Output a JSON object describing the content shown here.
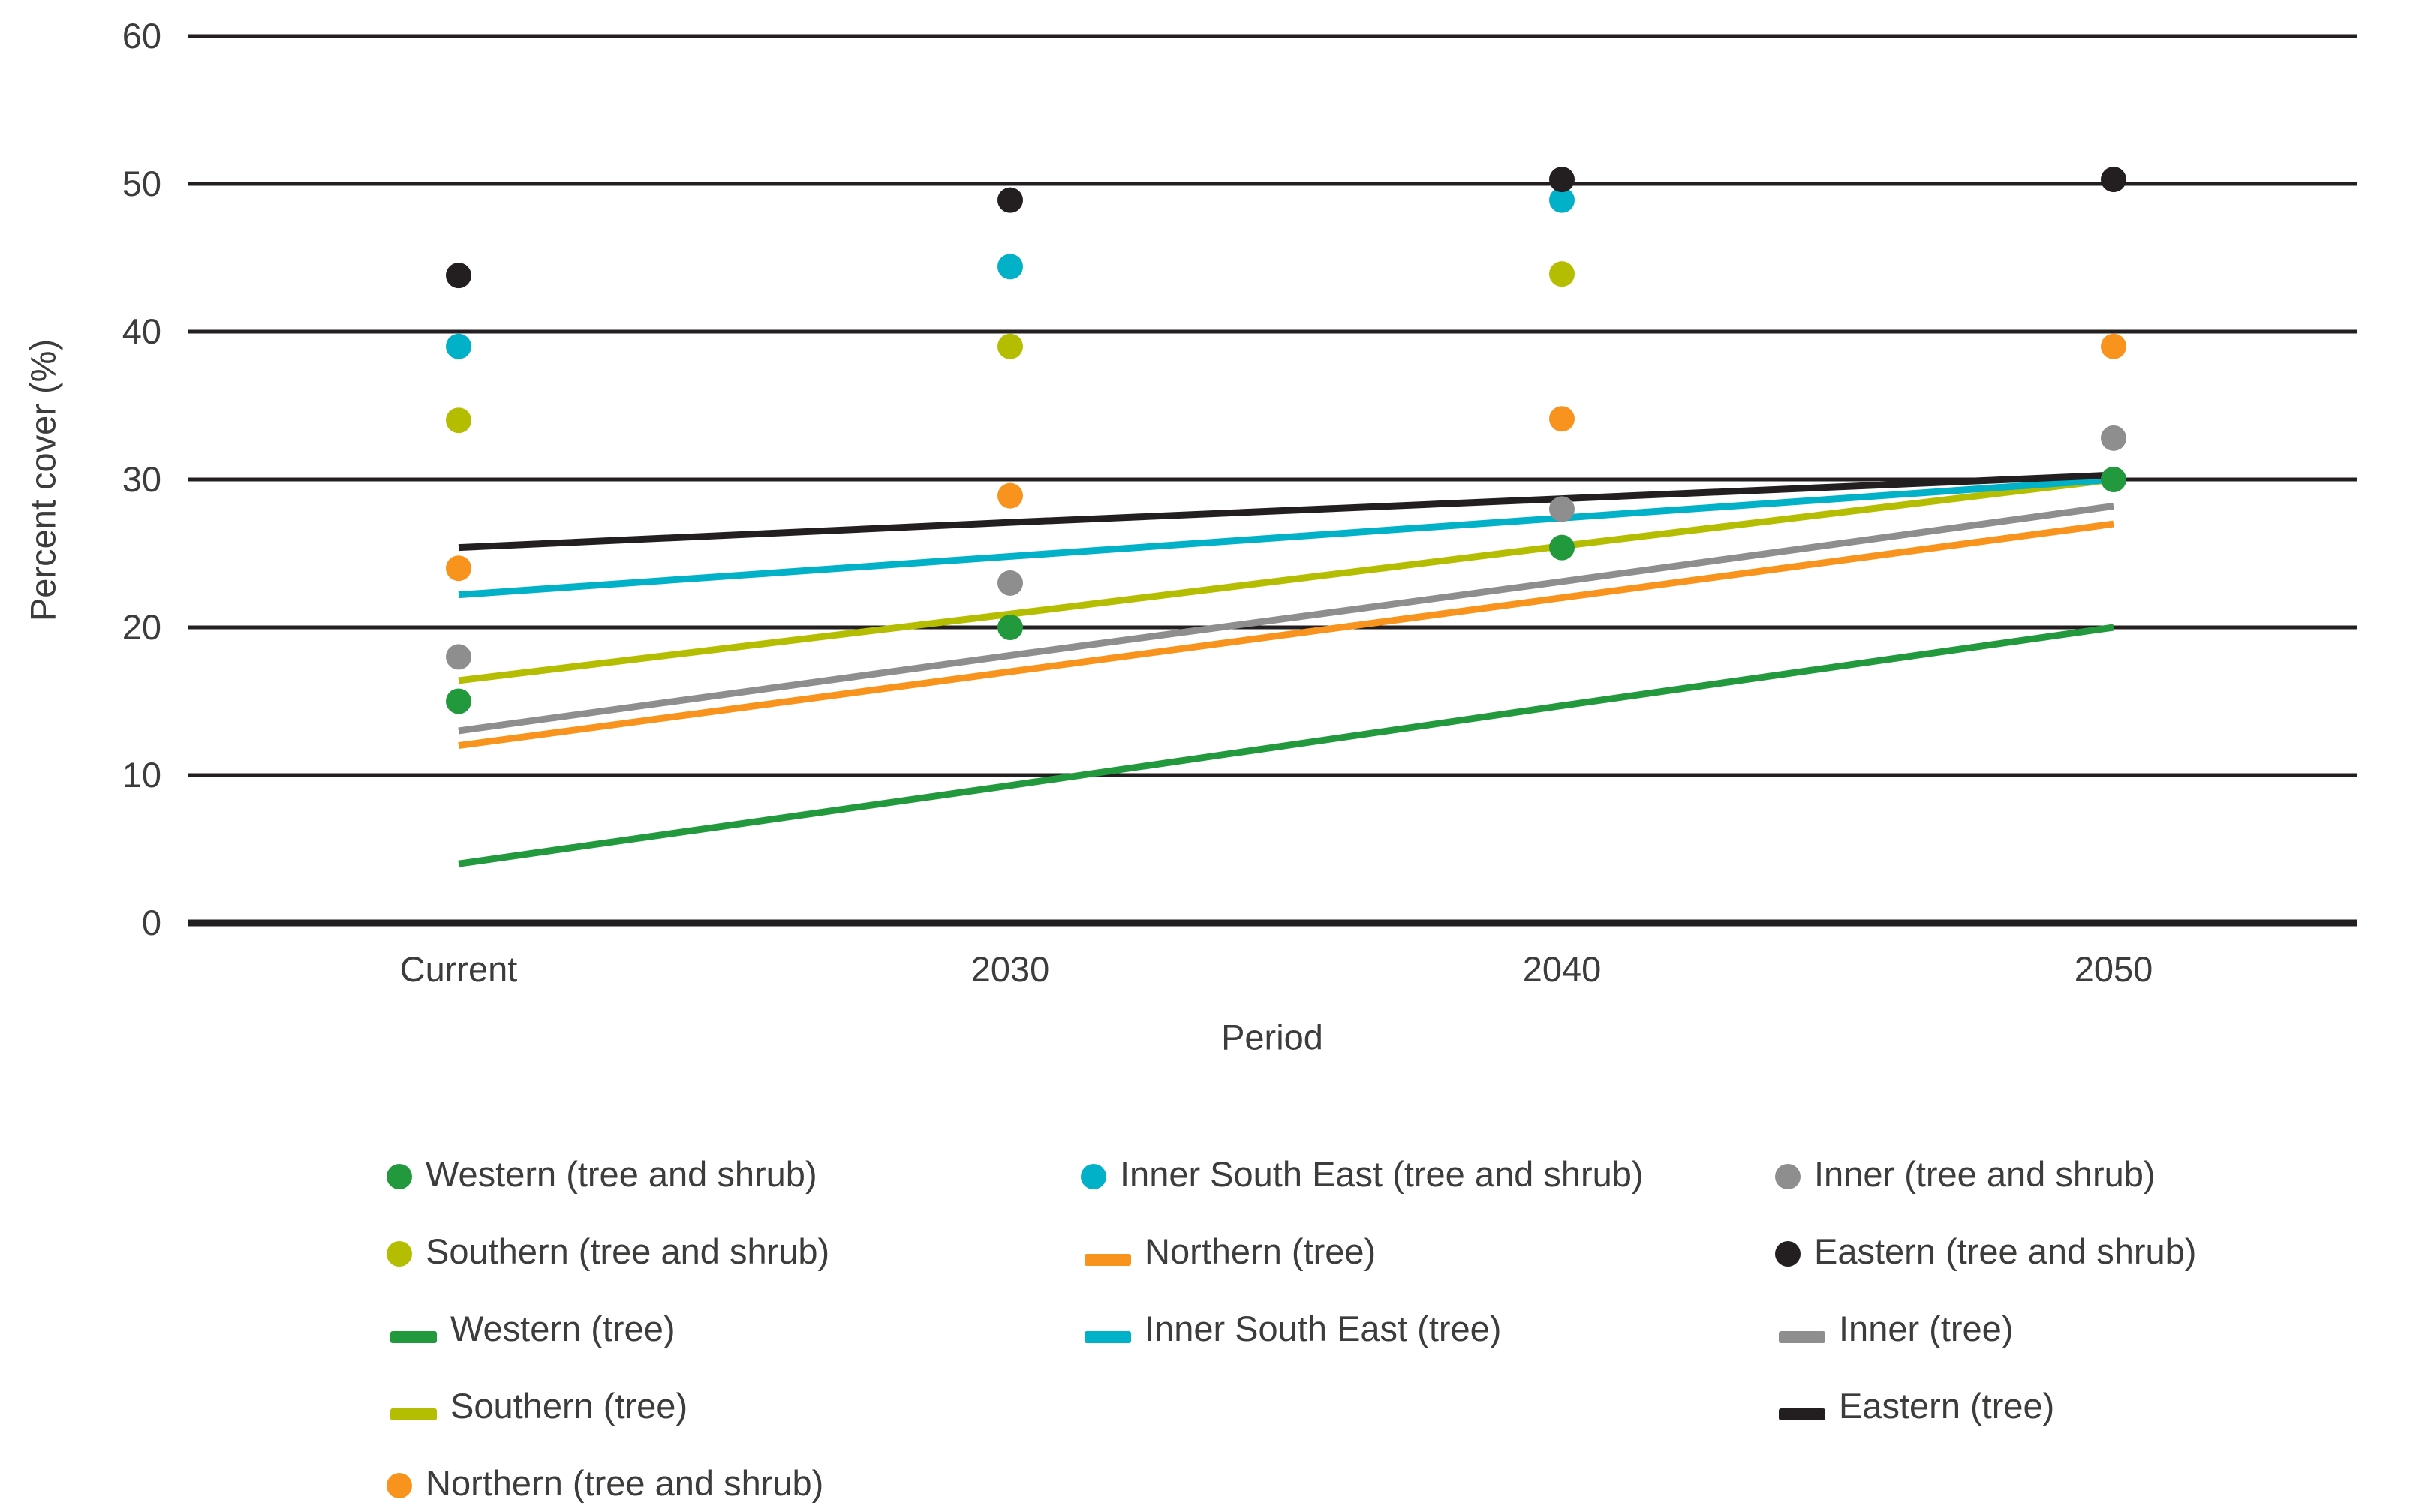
{
  "chart_data": {
    "type": "line",
    "subtype": "scatter targets with straight trend lines",
    "title": "",
    "categories": [
      "Current",
      "2030",
      "2040",
      "2050"
    ],
    "xlabel": "Period",
    "ylabel": "Percent cover (%)",
    "ylim": [
      0,
      60
    ],
    "yticks": [
      0,
      10,
      20,
      30,
      40,
      50,
      60
    ],
    "grid": "horizontal black gridlines at every 10, heavier baseline at 0",
    "legend_position": "below plot, three columns",
    "series": [
      {
        "name": "Western (tree and shrub)",
        "style": "dots",
        "color": "#22993d",
        "values": [
          15,
          20,
          25.4,
          30
        ]
      },
      {
        "name": "Inner South East (tree and shrub)",
        "style": "dots",
        "color": "#00b1c7",
        "values": [
          39,
          44.4,
          48.9,
          null
        ]
      },
      {
        "name": "Inner (tree and shrub)",
        "style": "dots",
        "color": "#8e8e8e",
        "values": [
          18,
          23,
          28,
          32.8
        ]
      },
      {
        "name": "Southern (tree and shrub)",
        "style": "dots",
        "color": "#b5bd00",
        "values": [
          34,
          39,
          43.9,
          null
        ]
      },
      {
        "name": "Northern (tree and shrub)",
        "style": "dots",
        "color": "#f8941d",
        "values": [
          24,
          28.9,
          34.1,
          39
        ]
      },
      {
        "name": "Eastern (tree and shrub)",
        "style": "dots",
        "color": "#231f20",
        "values": [
          43.8,
          48.9,
          50.3,
          50.3
        ]
      },
      {
        "name": "Western (tree)",
        "style": "line",
        "color": "#22993d",
        "values": [
          4,
          9.3,
          14.7,
          20
        ]
      },
      {
        "name": "Northern (tree)",
        "style": "line",
        "color": "#f8941d",
        "values": [
          12,
          17,
          22,
          27
        ]
      },
      {
        "name": "Inner (tree)",
        "style": "line",
        "color": "#8e8e8e",
        "values": [
          13,
          18.1,
          23.1,
          28.2
        ]
      },
      {
        "name": "Southern (tree)",
        "style": "line",
        "color": "#b5bd00",
        "values": [
          16.4,
          20.9,
          25.5,
          30
        ]
      },
      {
        "name": "Inner South East (tree)",
        "style": "line",
        "color": "#00b1c7",
        "values": [
          22.2,
          24.8,
          27.4,
          30
        ]
      },
      {
        "name": "Eastern (tree)",
        "style": "line",
        "color": "#231f20",
        "values": [
          25.4,
          27.1,
          28.7,
          30.3
        ]
      }
    ]
  },
  "legend": {
    "columns": [
      [
        {
          "label": "Western (tree and shrub)",
          "marker": "dot",
          "color": "#22993d"
        },
        {
          "label": "Southern (tree and shrub)",
          "marker": "dot",
          "color": "#b5bd00"
        },
        {
          "label": "Western (tree)",
          "marker": "line",
          "color": "#22993d"
        },
        {
          "label": "Southern (tree)",
          "marker": "line",
          "color": "#b5bd00"
        },
        {
          "label": "Northern (tree and shrub)",
          "marker": "dot",
          "color": "#f8941d"
        }
      ],
      [
        {
          "label": "Inner South East (tree and shrub)",
          "marker": "dot",
          "color": "#00b1c7"
        },
        {
          "label": "Northern (tree)",
          "marker": "line",
          "color": "#f8941d"
        },
        {
          "label": "Inner South East (tree)",
          "marker": "line",
          "color": "#00b1c7"
        }
      ],
      [
        {
          "label": "Inner (tree and shrub)",
          "marker": "dot",
          "color": "#8e8e8e"
        },
        {
          "label": "Eastern (tree and shrub)",
          "marker": "dot",
          "color": "#231f20"
        },
        {
          "label": "Inner (tree)",
          "marker": "line",
          "color": "#8e8e8e"
        },
        {
          "label": "Eastern (tree)",
          "marker": "line",
          "color": "#231f20"
        }
      ]
    ]
  },
  "colors": {
    "background": "#ffffff",
    "gridline": "#231f20",
    "text": "#3c3c3b",
    "western_green": "#22993d",
    "southern_olive": "#b5bd00",
    "northern_orange": "#f8941d",
    "inner_south_east_cyan": "#00b1c7",
    "inner_gray": "#8e8e8e",
    "eastern_black": "#231f20"
  }
}
